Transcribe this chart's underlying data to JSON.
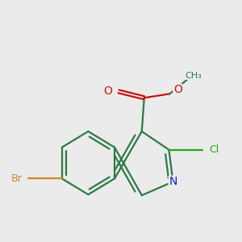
{
  "bg_color": "#ebebeb",
  "bond_color": "#2d7a45",
  "atom_colors": {
    "N": "#1a1acc",
    "O": "#cc1111",
    "Br": "#cc8822",
    "Cl": "#22aa22"
  },
  "line_width": 1.6,
  "font_size": 10
}
